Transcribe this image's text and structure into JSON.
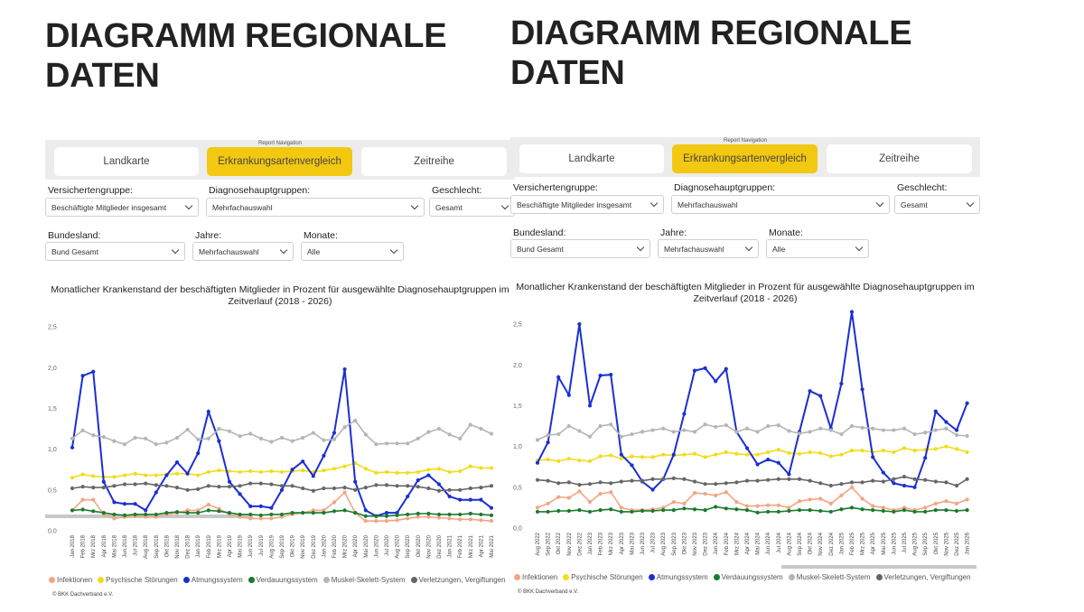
{
  "panels": [
    {
      "title": "DIAGRAMM REGIONALE DATEN",
      "nav_label": "Report Navigation",
      "nav": [
        "Landkarte",
        "Erkrankungsartenvergleich",
        "Zeitreihe"
      ],
      "filters": [
        {
          "label": "Versichertengruppe:",
          "value": "Beschäftigte Mitglieder insgesamt"
        },
        {
          "label": "Diagnosehauptgruppen:",
          "value": "Mehrfachauswahl"
        },
        {
          "label": "Geschlecht:",
          "value": "Gesamt"
        },
        {
          "label": "Bundesland:",
          "value": "Bund Gesamt"
        },
        {
          "label": "Jahre:",
          "value": "Mehrfachauswahl"
        },
        {
          "label": "Monate:",
          "value": "Alle"
        }
      ],
      "copyright": "© BKK Dachverband e.V."
    },
    {
      "title": "DIAGRAMM REGIONALE DATEN",
      "nav_label": "Report Navigation",
      "nav": [
        "Landkarte",
        "Erkrankungsartenvergleich",
        "Zeitreihe"
      ],
      "filters": [
        {
          "label": "Versichertengruppe:",
          "value": "Beschäftigte Mitglieder insgesamt"
        },
        {
          "label": "Diagnosehauptgruppen:",
          "value": "Mehrfachauswahl"
        },
        {
          "label": "Geschlecht:",
          "value": "Gesamt"
        },
        {
          "label": "Bundesland:",
          "value": "Bund Gesamt"
        },
        {
          "label": "Jahre:",
          "value": "Mehrfachauswahl"
        },
        {
          "label": "Monate:",
          "value": "Alle"
        }
      ],
      "copyright": "© BKK Dachverband e.V."
    }
  ],
  "chart_data": [
    {
      "type": "line",
      "title": "Monatlicher Krankenstand der beschäftigten Mitglieder in Prozent für ausgewählte Diagnosehauptgruppen im Zeitverlauf (2018 - 2026)",
      "categories": [
        "Jan 2018",
        "Feb 2018",
        "Mrz 2018",
        "Apr 2018",
        "Mai 2018",
        "Jun 2018",
        "Jul 2018",
        "Aug 2018",
        "Sep 2018",
        "Okt 2018",
        "Nov 2018",
        "Dez 2018",
        "Jan 2019",
        "Feb 2019",
        "Mrz 2019",
        "Apr 2019",
        "Mai 2019",
        "Jun 2019",
        "Jul 2019",
        "Aug 2019",
        "Sep 2019",
        "Okt 2019",
        "Nov 2019",
        "Dez 2019",
        "Jan 2020",
        "Feb 2020",
        "Mrz 2020",
        "Apr 2020",
        "Mai 2020",
        "Jun 2020",
        "Jul 2020",
        "Aug 2020",
        "Sep 2020",
        "Okt 2020",
        "Nov 2020",
        "Dez 2020",
        "Jan 2021",
        "Feb 2021",
        "Mrz 2021",
        "Apr 2021",
        "Mai 2021"
      ],
      "ylim": [
        0,
        2.7
      ],
      "yticks": [
        {
          "value": 0,
          "label": "0,0"
        },
        {
          "value": 0.5,
          "label": "0,5"
        },
        {
          "value": 1,
          "label": "1,0"
        },
        {
          "value": 1.5,
          "label": "1,5"
        },
        {
          "value": 2,
          "label": "2,0"
        },
        {
          "value": 2.5,
          "label": "2,5"
        }
      ],
      "series": [
        {
          "name": "Infektionen",
          "color": "#f4a582",
          "values": [
            0.25,
            0.38,
            0.38,
            0.2,
            0.15,
            0.17,
            0.18,
            0.17,
            0.17,
            0.2,
            0.22,
            0.25,
            0.25,
            0.32,
            0.27,
            0.2,
            0.17,
            0.15,
            0.15,
            0.15,
            0.17,
            0.2,
            0.22,
            0.25,
            0.25,
            0.35,
            0.47,
            0.22,
            0.12,
            0.12,
            0.12,
            0.13,
            0.15,
            0.17,
            0.17,
            0.16,
            0.15,
            0.14,
            0.14,
            0.13,
            0.12
          ]
        },
        {
          "name": "Psychische Störungen",
          "color": "#f2dc1c",
          "values": [
            0.65,
            0.69,
            0.67,
            0.66,
            0.66,
            0.68,
            0.7,
            0.68,
            0.68,
            0.69,
            0.7,
            0.7,
            0.68,
            0.72,
            0.74,
            0.73,
            0.72,
            0.73,
            0.72,
            0.73,
            0.72,
            0.73,
            0.74,
            0.72,
            0.74,
            0.76,
            0.79,
            0.83,
            0.76,
            0.71,
            0.72,
            0.71,
            0.71,
            0.72,
            0.75,
            0.76,
            0.72,
            0.73,
            0.79,
            0.77,
            0.77
          ]
        },
        {
          "name": "Atmungssystem",
          "color": "#1b2fd1",
          "values": [
            1.02,
            1.9,
            1.95,
            0.6,
            0.35,
            0.33,
            0.33,
            0.25,
            0.47,
            0.68,
            0.84,
            0.7,
            0.95,
            1.46,
            1.1,
            0.6,
            0.45,
            0.3,
            0.3,
            0.28,
            0.5,
            0.75,
            0.85,
            0.67,
            0.92,
            1.2,
            1.98,
            0.6,
            0.25,
            0.18,
            0.22,
            0.22,
            0.42,
            0.62,
            0.68,
            0.57,
            0.42,
            0.38,
            0.38,
            0.38,
            0.28
          ]
        },
        {
          "name": "Verdauungssystem",
          "color": "#1a7a2c",
          "values": [
            0.25,
            0.26,
            0.24,
            0.22,
            0.2,
            0.19,
            0.2,
            0.2,
            0.2,
            0.22,
            0.23,
            0.22,
            0.22,
            0.25,
            0.24,
            0.22,
            0.2,
            0.2,
            0.19,
            0.2,
            0.2,
            0.22,
            0.22,
            0.22,
            0.22,
            0.24,
            0.25,
            0.22,
            0.18,
            0.18,
            0.18,
            0.19,
            0.2,
            0.21,
            0.21,
            0.2,
            0.2,
            0.2,
            0.21,
            0.2,
            0.19
          ]
        },
        {
          "name": "Muskel-Skelett-System",
          "color": "#b5b5b5",
          "values": [
            1.13,
            1.23,
            1.17,
            1.15,
            1.1,
            1.06,
            1.14,
            1.13,
            1.06,
            1.08,
            1.14,
            1.24,
            1.12,
            1.13,
            1.25,
            1.22,
            1.16,
            1.19,
            1.13,
            1.09,
            1.14,
            1.1,
            1.14,
            1.2,
            1.11,
            1.12,
            1.27,
            1.35,
            1.18,
            1.06,
            1.07,
            1.07,
            1.07,
            1.13,
            1.21,
            1.25,
            1.18,
            1.13,
            1.3,
            1.25,
            1.19
          ]
        },
        {
          "name": "Verletzungen, Vergiftungen",
          "color": "#666666",
          "values": [
            0.52,
            0.54,
            0.53,
            0.53,
            0.55,
            0.57,
            0.57,
            0.58,
            0.56,
            0.55,
            0.53,
            0.5,
            0.51,
            0.55,
            0.54,
            0.54,
            0.55,
            0.58,
            0.58,
            0.57,
            0.55,
            0.55,
            0.52,
            0.49,
            0.52,
            0.52,
            0.53,
            0.5,
            0.53,
            0.56,
            0.56,
            0.55,
            0.55,
            0.54,
            0.52,
            0.49,
            0.5,
            0.5,
            0.52,
            0.53,
            0.55
          ]
        }
      ]
    },
    {
      "type": "line",
      "title": "Monatlicher Krankenstand der beschäftigten Mitglieder in Prozent für ausgewählte Diagnosehauptgruppen im Zeitverlauf (2018 - 2026)",
      "categories": [
        "Aug 2022",
        "Sep 2022",
        "Okt 2022",
        "Nov 2022",
        "Dez 2022",
        "Jan 2023",
        "Feb 2023",
        "Mrz 2023",
        "Apr 2023",
        "Mai 2023",
        "Jun 2023",
        "Jul 2023",
        "Aug 2023",
        "Sep 2023",
        "Okt 2023",
        "Nov 2023",
        "Dez 2023",
        "Jan 2024",
        "Feb 2024",
        "Mrz 2024",
        "Apr 2024",
        "Mai 2024",
        "Jun 2024",
        "Jul 2024",
        "Aug 2024",
        "Sep 2024",
        "Okt 2024",
        "Nov 2024",
        "Dez 2024",
        "Jan 2025",
        "Feb 2025",
        "Mrz 2025",
        "Apr 2025",
        "Mai 2025",
        "Jun 2025",
        "Jul 2025",
        "Aug 2025",
        "Sep 2025",
        "Okt 2025",
        "Nov 2025",
        "Dez 2025",
        "Jan 2026"
      ],
      "ylim": [
        0,
        2.7
      ],
      "yticks": [
        {
          "value": 0,
          "label": "0,0"
        },
        {
          "value": 0.5,
          "label": "0,5"
        },
        {
          "value": 1,
          "label": "1,0"
        },
        {
          "value": 1.5,
          "label": "1,5"
        },
        {
          "value": 2,
          "label": "2,0"
        },
        {
          "value": 2.5,
          "label": "2,5"
        }
      ],
      "series": [
        {
          "name": "Infektionen",
          "color": "#f4a582",
          "values": [
            0.25,
            0.3,
            0.38,
            0.37,
            0.45,
            0.32,
            0.42,
            0.44,
            0.25,
            0.22,
            0.22,
            0.23,
            0.25,
            0.32,
            0.3,
            0.43,
            0.42,
            0.4,
            0.44,
            0.32,
            0.27,
            0.27,
            0.28,
            0.28,
            0.25,
            0.33,
            0.35,
            0.36,
            0.3,
            0.4,
            0.5,
            0.36,
            0.27,
            0.25,
            0.22,
            0.25,
            0.22,
            0.25,
            0.3,
            0.33,
            0.3,
            0.35
          ]
        },
        {
          "name": "Psychische Störungen",
          "color": "#f2dc1c",
          "values": [
            0.83,
            0.84,
            0.82,
            0.85,
            0.83,
            0.82,
            0.88,
            0.89,
            0.85,
            0.88,
            0.87,
            0.87,
            0.9,
            0.89,
            0.9,
            0.91,
            0.87,
            0.9,
            0.93,
            0.91,
            0.9,
            0.9,
            0.93,
            0.96,
            0.92,
            0.91,
            0.93,
            0.92,
            0.88,
            0.9,
            0.95,
            0.95,
            0.93,
            0.95,
            0.93,
            0.98,
            0.95,
            0.96,
            0.97,
            1,
            0.97,
            0.93
          ]
        },
        {
          "name": "Atmungssystem",
          "color": "#1b2fd1",
          "values": [
            0.8,
            1.05,
            1.85,
            1.63,
            2.5,
            1.5,
            1.87,
            1.88,
            0.9,
            0.77,
            0.57,
            0.47,
            0.6,
            0.9,
            1.4,
            1.93,
            1.96,
            1.8,
            1.95,
            1.18,
            0.98,
            0.78,
            0.84,
            0.8,
            0.66,
            1.18,
            1.68,
            1.62,
            1.22,
            1.77,
            2.65,
            1.7,
            0.87,
            0.68,
            0.55,
            0.52,
            0.5,
            0.86,
            1.43,
            1.3,
            1.2,
            1.53
          ]
        },
        {
          "name": "Verdauungssystem",
          "color": "#1a7a2c",
          "values": [
            0.2,
            0.2,
            0.21,
            0.21,
            0.22,
            0.2,
            0.22,
            0.23,
            0.2,
            0.2,
            0.21,
            0.21,
            0.22,
            0.22,
            0.24,
            0.23,
            0.22,
            0.26,
            0.24,
            0.23,
            0.22,
            0.19,
            0.2,
            0.2,
            0.21,
            0.22,
            0.22,
            0.21,
            0.2,
            0.23,
            0.25,
            0.23,
            0.22,
            0.21,
            0.2,
            0.22,
            0.2,
            0.2,
            0.22,
            0.22,
            0.21,
            0.22
          ]
        },
        {
          "name": "Muskel-Skelett-System",
          "color": "#b5b5b5",
          "values": [
            1.08,
            1.14,
            1.15,
            1.25,
            1.19,
            1.12,
            1.25,
            1.27,
            1.12,
            1.15,
            1.18,
            1.2,
            1.22,
            1.18,
            1.2,
            1.18,
            1.27,
            1.24,
            1.26,
            1.18,
            1.22,
            1.18,
            1.25,
            1.26,
            1.19,
            1.16,
            1.18,
            1.22,
            1.2,
            1.15,
            1.25,
            1.23,
            1.22,
            1.2,
            1.2,
            1.22,
            1.15,
            1.17,
            1.2,
            1.22,
            1.14,
            1.13
          ]
        },
        {
          "name": "Verletzungen, Vergiftungen",
          "color": "#666666",
          "values": [
            0.59,
            0.58,
            0.55,
            0.56,
            0.53,
            0.54,
            0.56,
            0.55,
            0.57,
            0.58,
            0.58,
            0.6,
            0.6,
            0.61,
            0.6,
            0.57,
            0.54,
            0.54,
            0.55,
            0.56,
            0.58,
            0.58,
            0.59,
            0.6,
            0.6,
            0.6,
            0.58,
            0.55,
            0.52,
            0.54,
            0.56,
            0.56,
            0.58,
            0.57,
            0.6,
            0.63,
            0.6,
            0.59,
            0.57,
            0.56,
            0.52,
            0.6
          ]
        }
      ]
    }
  ]
}
